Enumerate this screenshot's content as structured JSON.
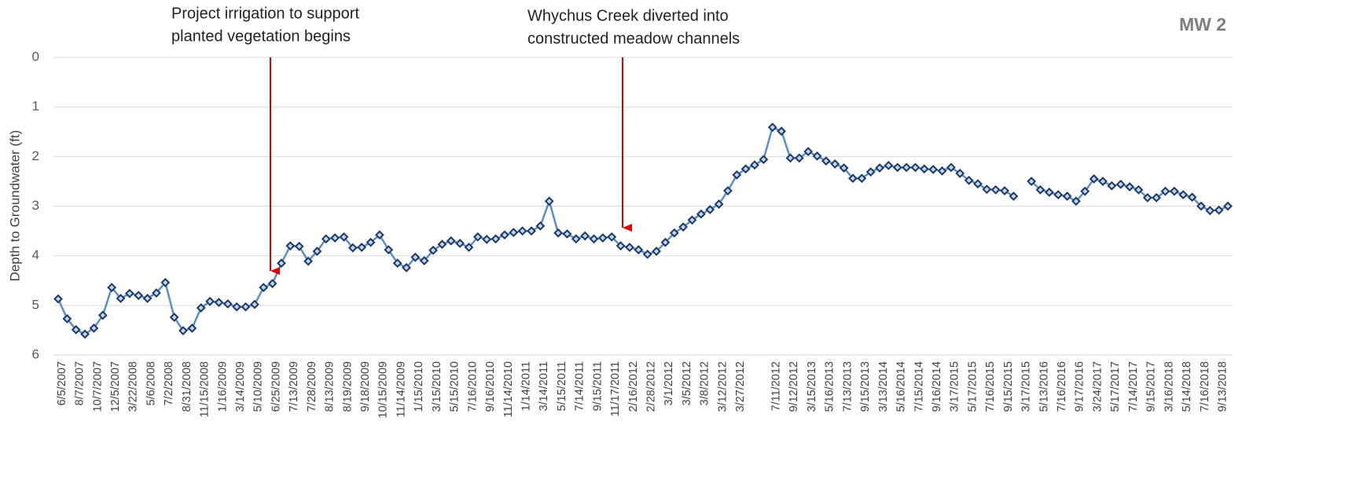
{
  "chart_data": {
    "type": "line",
    "title": "MW 2",
    "y_label": "Depth to Groundwater (ft)",
    "annotations": [
      [
        "Project irrigation to support",
        "planted vegetation begins"
      ],
      [
        "Whychus Creek diverted into",
        "constructed meadow channels"
      ]
    ],
    "categories": [
      "6/5/2007",
      null,
      "8/7/2007",
      null,
      "10/7/2007",
      null,
      "12/5/2007",
      null,
      "3/22/2008",
      null,
      "5/6/2008",
      null,
      "7/2/2008",
      null,
      "8/31/2008",
      null,
      "11/15/2008",
      null,
      "1/16/2009",
      null,
      "3/14/2009",
      null,
      "5/10/2009",
      null,
      "6/25/2009",
      null,
      "7/13/2009",
      null,
      "7/28/2009",
      null,
      "8/13/2009",
      null,
      "8/19/2009",
      null,
      "9/18/2009",
      null,
      "10/15/2009",
      null,
      "11/14/2009",
      null,
      "1/15/2010",
      null,
      "3/15/2010",
      null,
      "5/15/2010",
      null,
      "7/16/2010",
      null,
      "9/16/2010",
      null,
      "11/14/2010",
      null,
      "1/14/2011",
      null,
      "3/14/2011",
      null,
      "5/15/2011",
      null,
      "7/14/2011",
      null,
      "9/15/2011",
      null,
      "11/17/2011",
      null,
      "2/16/2012",
      null,
      "2/28/2012",
      null,
      "3/1/2012",
      null,
      "3/5/2012",
      null,
      "3/8/2012",
      null,
      "3/12/2012",
      null,
      "3/27/2012",
      null,
      null,
      null,
      "7/11/2012",
      null,
      "9/12/2012",
      null,
      "3/15/2013",
      null,
      "5/16/2013",
      null,
      "7/13/2013",
      null,
      "9/15/2013",
      null,
      "3/13/2014",
      null,
      "5/16/2014",
      null,
      "7/15/2014",
      null,
      "9/16/2014",
      null,
      "3/17/2015",
      null,
      "5/17/2015",
      null,
      "7/16/2015",
      null,
      "9/15/2015",
      null,
      "3/17/2015",
      null,
      "5/13/2016",
      null,
      "7/16/2016",
      null,
      "9/17/2016",
      null,
      "3/24/2017",
      null,
      "5/17/2017",
      null,
      "7/14/2017",
      null,
      "9/15/2017",
      null,
      "3/16/2018",
      null,
      "5/14/2018",
      null,
      "7/16/2018",
      null,
      "9/13/2018",
      null
    ],
    "series": [
      {
        "name": "MW 2",
        "color": "#5b8fc9",
        "marker_color": "#1f3864",
        "values": [
          4.87,
          5.27,
          5.49,
          5.58,
          5.46,
          5.2,
          4.64,
          4.86,
          4.76,
          4.8,
          4.86,
          4.75,
          4.54,
          5.24,
          5.51,
          5.46,
          5.05,
          4.92,
          4.94,
          4.97,
          5.03,
          5.03,
          4.98,
          4.64,
          4.56,
          4.15,
          3.8,
          3.81,
          4.11,
          3.91,
          3.66,
          3.64,
          3.62,
          3.84,
          3.83,
          3.73,
          3.58,
          3.88,
          4.15,
          4.24,
          4.03,
          4.1,
          3.89,
          3.77,
          3.7,
          3.75,
          3.83,
          3.62,
          3.67,
          3.66,
          3.58,
          3.53,
          3.5,
          3.5,
          3.4,
          2.9,
          3.54,
          3.56,
          3.66,
          3.6,
          3.66,
          3.64,
          3.62,
          3.8,
          3.83,
          3.88,
          3.97,
          3.91,
          3.73,
          3.54,
          3.42,
          3.28,
          3.16,
          3.07,
          2.96,
          2.69,
          2.37,
          2.25,
          2.17,
          2.06,
          1.41,
          1.49,
          2.03,
          2.03,
          1.9,
          1.99,
          2.09,
          2.15,
          2.23,
          2.44,
          2.44,
          2.31,
          2.23,
          2.18,
          2.22,
          2.22,
          2.22,
          2.25,
          2.26,
          2.29,
          2.22,
          2.34,
          2.48,
          2.55,
          2.66,
          2.67,
          2.69,
          2.8,
          null,
          2.5,
          2.67,
          2.72,
          2.77,
          2.8,
          2.9,
          2.7,
          2.45,
          2.5,
          2.59,
          2.56,
          2.61,
          2.67,
          2.83,
          2.83,
          2.7,
          2.7,
          2.77,
          2.82,
          3.0,
          3.09,
          3.08,
          3.0
        ]
      }
    ],
    "ylim": [
      0,
      6
    ],
    "yticks": [
      0,
      1,
      2,
      3,
      4,
      5,
      6
    ],
    "y_inverted": true,
    "grid": true
  }
}
